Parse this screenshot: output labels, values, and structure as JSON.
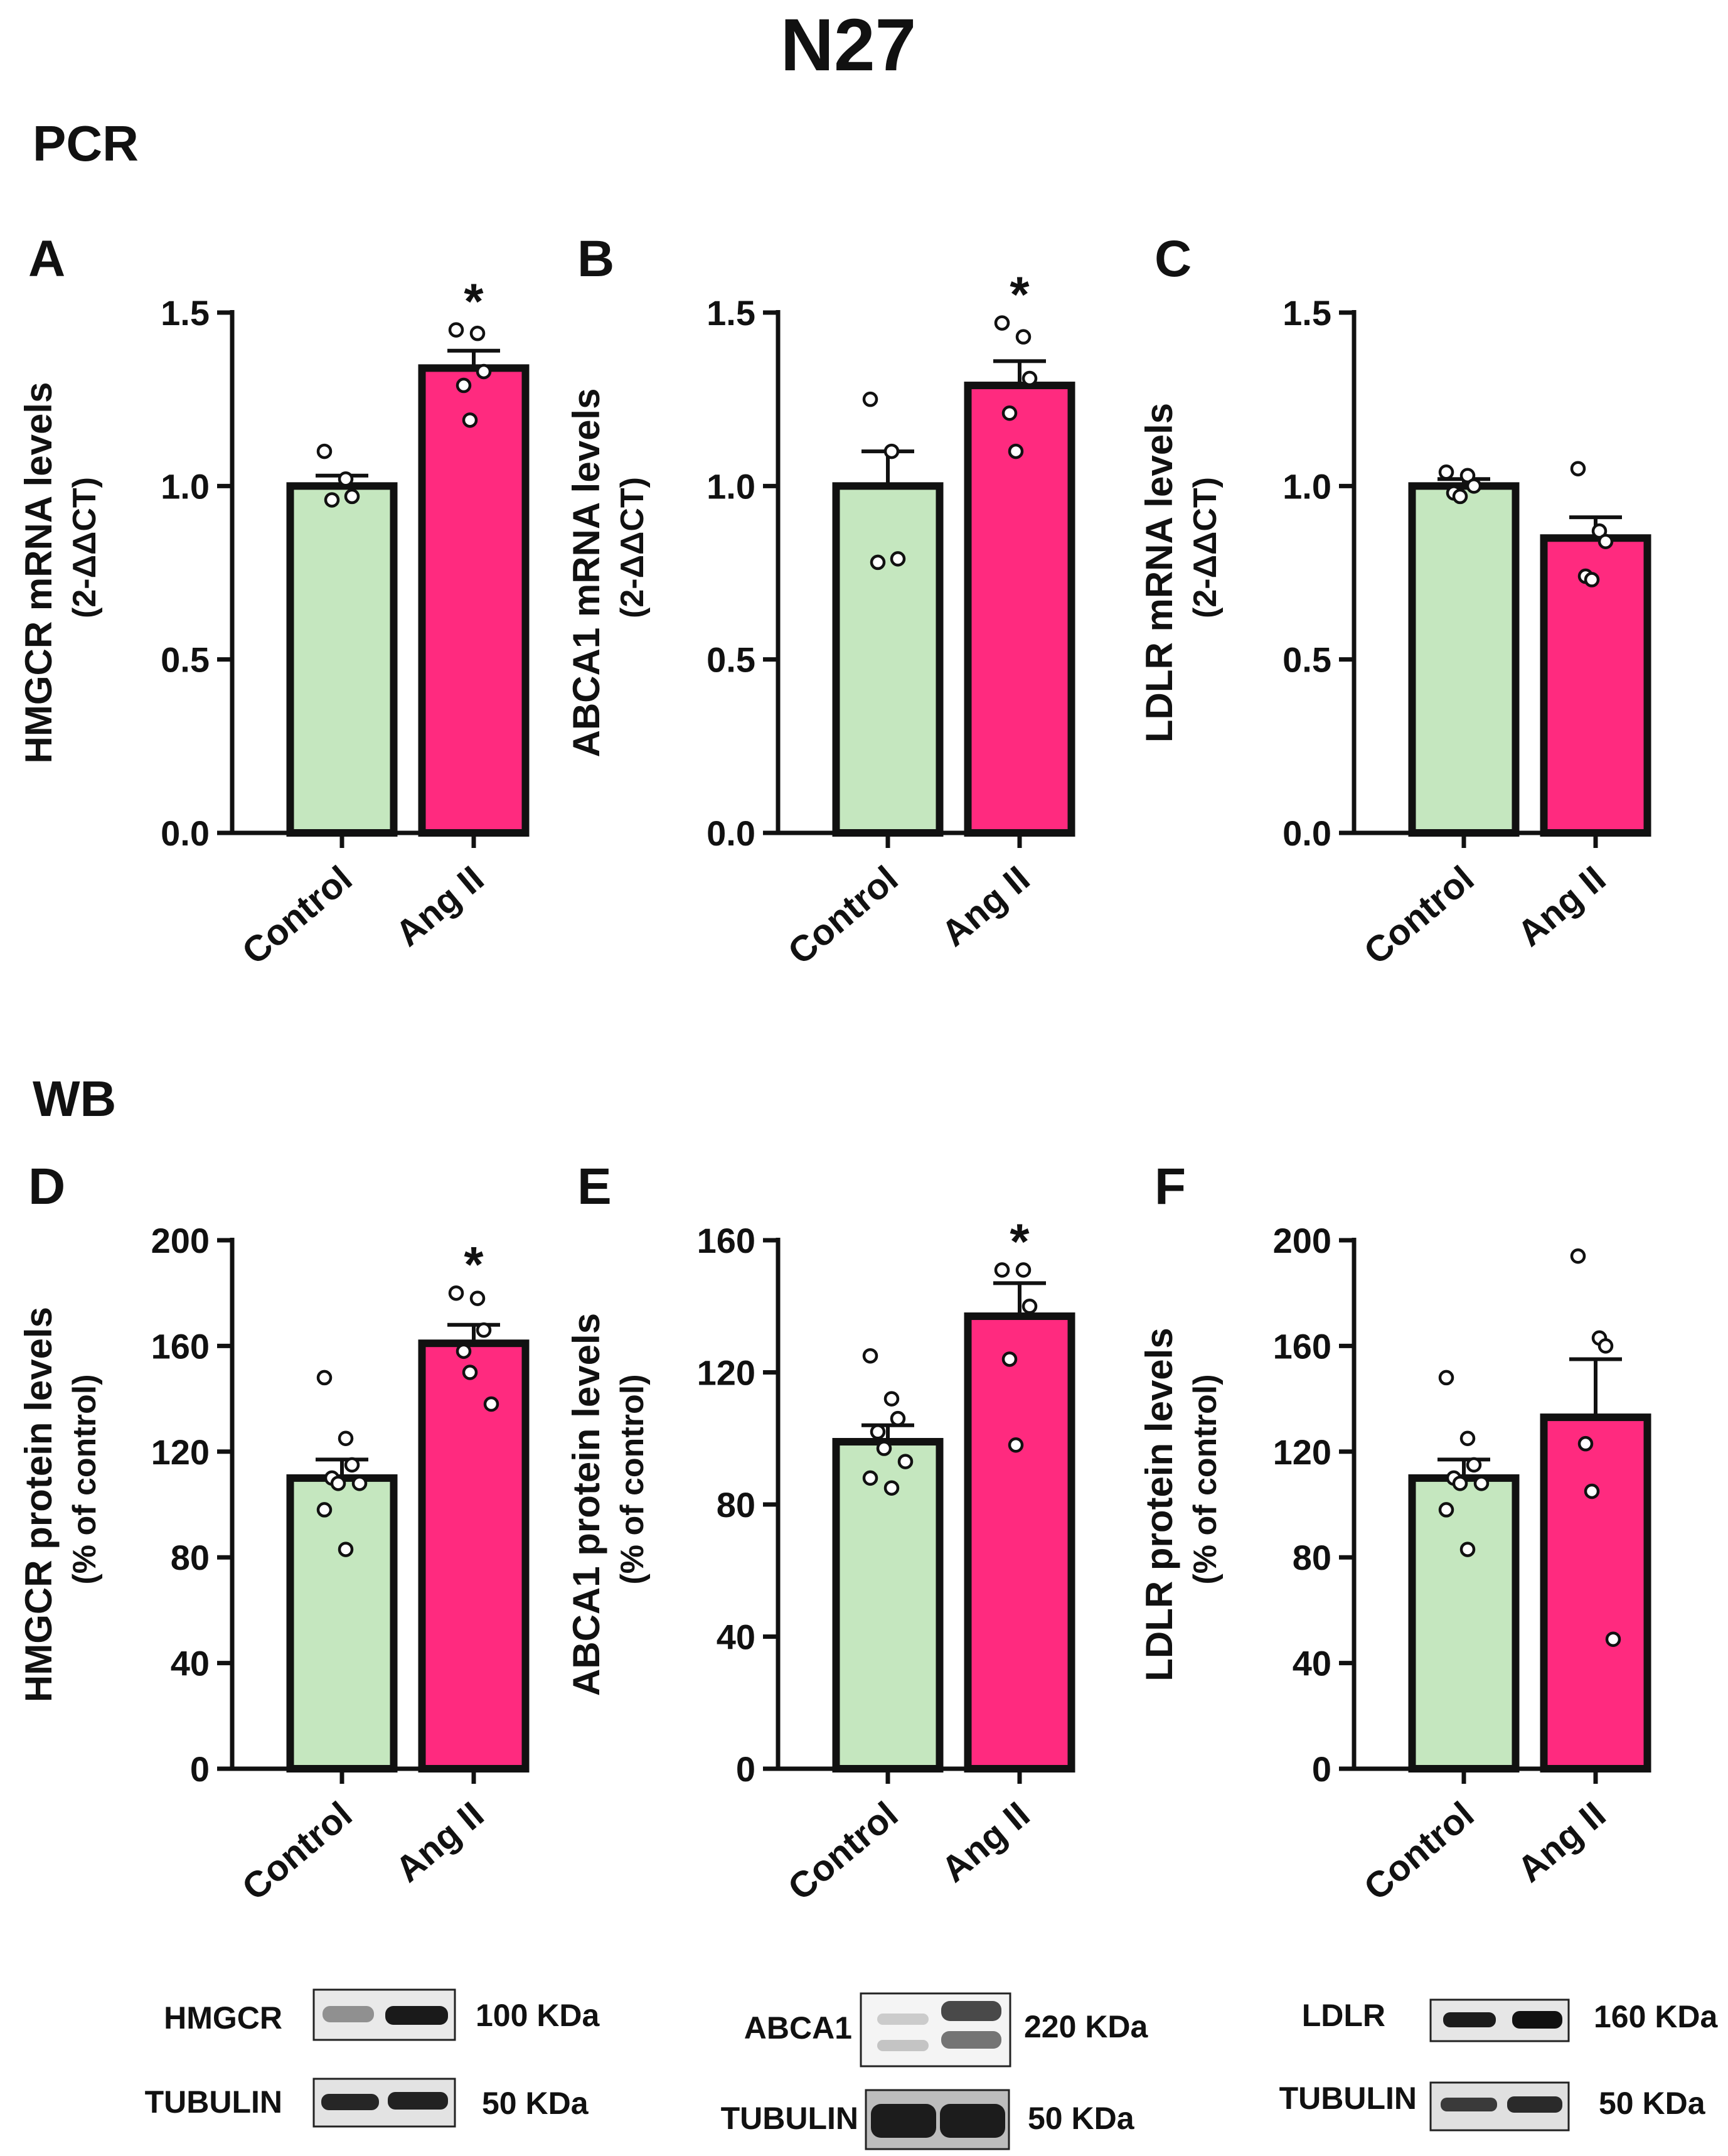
{
  "figure": {
    "title": "N27",
    "sections": {
      "pcr": "PCR",
      "wb": "WB"
    }
  },
  "colors": {
    "control": "#c5e7bf",
    "angii": "#ff2a7f",
    "axis": "#111111",
    "point_fill": "#ffffff"
  },
  "chart_data": [
    {
      "panel": "A",
      "type": "bar",
      "ylabel": "HMGCR mRNA levels",
      "ylabel2": "(2-ΔΔCT)",
      "ylim": [
        0,
        1.5
      ],
      "ticks": [
        "0.0",
        "0.5",
        "1.0",
        "1.5"
      ],
      "categories": [
        "Control",
        "Ang II"
      ],
      "values": [
        1.0,
        1.34
      ],
      "errors": [
        0.03,
        0.05
      ],
      "points": [
        [
          1.1,
          1.02,
          0.97,
          0.96
        ],
        [
          1.45,
          1.44,
          1.33,
          1.29,
          1.19
        ]
      ],
      "significance": [
        "",
        "*"
      ]
    },
    {
      "panel": "B",
      "type": "bar",
      "ylabel": "ABCA1 mRNA levels",
      "ylabel2": "(2-ΔΔCT)",
      "ylim": [
        0,
        1.5
      ],
      "ticks": [
        "0.0",
        "0.5",
        "1.0",
        "1.5"
      ],
      "categories": [
        "Control",
        "Ang II"
      ],
      "values": [
        1.0,
        1.29
      ],
      "errors": [
        0.1,
        0.07
      ],
      "points": [
        [
          1.25,
          1.1,
          0.79,
          0.78
        ],
        [
          1.47,
          1.43,
          1.31,
          1.21,
          1.1
        ]
      ],
      "significance": [
        "",
        "*"
      ]
    },
    {
      "panel": "C",
      "type": "bar",
      "ylabel": "LDLR mRNA levels",
      "ylabel2": "(2-ΔΔCT)",
      "ylim": [
        0,
        1.5
      ],
      "ticks": [
        "0.0",
        "0.5",
        "1.0",
        "1.5"
      ],
      "categories": [
        "Control",
        "Ang II"
      ],
      "values": [
        1.0,
        0.85
      ],
      "errors": [
        0.02,
        0.06
      ],
      "points": [
        [
          1.04,
          1.03,
          1.0,
          0.98,
          0.97
        ],
        [
          1.05,
          0.87,
          0.84,
          0.74,
          0.73
        ]
      ],
      "significance": [
        "",
        ""
      ]
    },
    {
      "panel": "D",
      "type": "bar",
      "ylabel": "HMGCR protein levels",
      "ylabel2": "(% of control)",
      "ylim": [
        0,
        200
      ],
      "ticks": [
        "0",
        "40",
        "80",
        "120",
        "160",
        "200"
      ],
      "categories": [
        "Control",
        "Ang II"
      ],
      "values": [
        110,
        161
      ],
      "errors": [
        7,
        7
      ],
      "points": [
        [
          148,
          125,
          115,
          110,
          108,
          108,
          98,
          83
        ],
        [
          180,
          178,
          166,
          158,
          150,
          138
        ]
      ],
      "significance": [
        "",
        "*"
      ]
    },
    {
      "panel": "E",
      "type": "bar",
      "ylabel": "ABCA1 protein levels",
      "ylabel2": "(% of control)",
      "ylim": [
        0,
        160
      ],
      "ticks": [
        "0",
        "40",
        "80",
        "120",
        "160"
      ],
      "categories": [
        "Control",
        "Ang II"
      ],
      "values": [
        99,
        137
      ],
      "errors": [
        5,
        10
      ],
      "points": [
        [
          125,
          112,
          106,
          102,
          97,
          93,
          88,
          85
        ],
        [
          151,
          151,
          140,
          124,
          98
        ]
      ],
      "significance": [
        "",
        "*"
      ]
    },
    {
      "panel": "F",
      "type": "bar",
      "ylabel": "LDLR protein levels",
      "ylabel2": "(% of control)",
      "ylim": [
        0,
        200
      ],
      "ticks": [
        "0",
        "40",
        "80",
        "120",
        "160",
        "200"
      ],
      "categories": [
        "Control",
        "Ang II"
      ],
      "values": [
        110,
        133
      ],
      "errors": [
        7,
        22
      ],
      "points": [
        [
          148,
          125,
          115,
          110,
          108,
          108,
          98,
          83
        ],
        [
          194,
          163,
          160,
          123,
          105,
          49
        ]
      ],
      "significance": [
        "",
        ""
      ]
    }
  ],
  "blots": [
    {
      "panel": "D",
      "rows": [
        {
          "protein": "HMGCR",
          "size": "100 KDa"
        },
        {
          "protein": "TUBULIN",
          "size": "50 KDa"
        }
      ]
    },
    {
      "panel": "E",
      "rows": [
        {
          "protein": "ABCA1",
          "size": "220 KDa"
        },
        {
          "protein": "TUBULIN",
          "size": "50 KDa"
        }
      ]
    },
    {
      "panel": "F",
      "rows": [
        {
          "protein": "LDLR",
          "size": "160 KDa"
        },
        {
          "protein": "TUBULIN",
          "size": "50 KDa"
        }
      ]
    }
  ]
}
